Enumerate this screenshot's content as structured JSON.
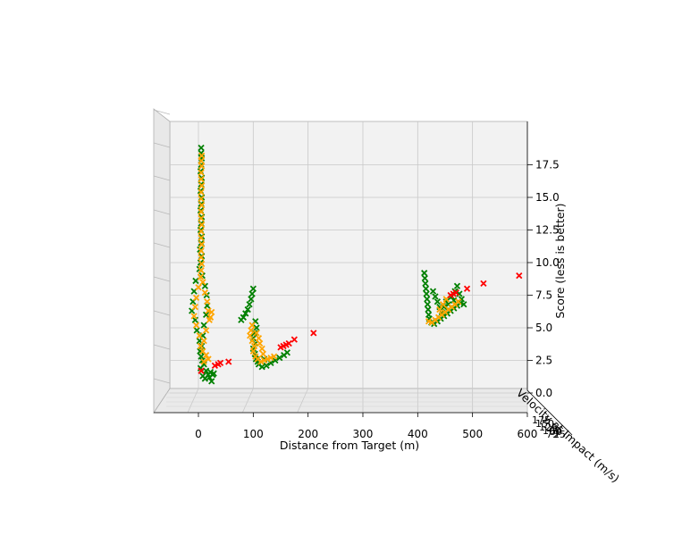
{
  "chart_data": {
    "type": "scatter",
    "projection": "3d",
    "title": "",
    "xlabel": "Distance from Target (m)",
    "ylabel": "Velocity at Impact (m/s)",
    "zlabel": "Score (less is better)",
    "xlim": [
      -80,
      600
    ],
    "zlim": [
      -0.5,
      20
    ],
    "xticks": [
      "0",
      "100",
      "200",
      "300",
      "400",
      "500",
      "600"
    ],
    "zticks": [
      "0.0",
      "2.5",
      "5.0",
      "7.5",
      "10.0",
      "12.5",
      "15.0",
      "17.5"
    ],
    "yticks_partial": [
      "0",
      "25",
      "50",
      "75",
      "100",
      "125",
      "150",
      "175"
    ],
    "grid": true,
    "marker": "x",
    "series": [
      {
        "color": "#008000",
        "points": [
          [
            5,
            18.8
          ],
          [
            5,
            18.4
          ],
          [
            6,
            18.0
          ],
          [
            5,
            17.5
          ],
          [
            4,
            17.0
          ],
          [
            6,
            16.5
          ],
          [
            5,
            16.0
          ],
          [
            4,
            15.5
          ],
          [
            6,
            15.0
          ],
          [
            5,
            14.5
          ],
          [
            4,
            14.0
          ],
          [
            6,
            13.5
          ],
          [
            5,
            13.0
          ],
          [
            4,
            12.5
          ],
          [
            6,
            12.0
          ],
          [
            5,
            11.5
          ],
          [
            3,
            11.0
          ],
          [
            6,
            10.5
          ],
          [
            4,
            10.0
          ],
          [
            2,
            9.5
          ],
          [
            7,
            9.0
          ],
          [
            -5,
            8.6
          ],
          [
            12,
            8.2
          ],
          [
            -8,
            7.8
          ],
          [
            15,
            7.5
          ],
          [
            -10,
            7.0
          ],
          [
            16,
            6.7
          ],
          [
            -12,
            6.3
          ],
          [
            14,
            6.0
          ],
          [
            -6,
            5.6
          ],
          [
            10,
            5.2
          ],
          [
            -3,
            4.8
          ],
          [
            8,
            4.4
          ],
          [
            2,
            4.0
          ],
          [
            6,
            3.6
          ],
          [
            3,
            3.2
          ],
          [
            5,
            2.8
          ],
          [
            7,
            2.5
          ],
          [
            10,
            2.2
          ],
          [
            4,
            1.9
          ],
          [
            14,
            1.7
          ],
          [
            22,
            1.6
          ],
          [
            28,
            1.5
          ],
          [
            18,
            1.4
          ],
          [
            8,
            1.3
          ],
          [
            12,
            1.1
          ],
          [
            20,
            1.2
          ],
          [
            26,
            1.4
          ],
          [
            24,
            0.9
          ],
          [
            100,
            8.0
          ],
          [
            98,
            7.6
          ],
          [
            96,
            7.2
          ],
          [
            93,
            6.8
          ],
          [
            90,
            6.4
          ],
          [
            86,
            6.1
          ],
          [
            82,
            5.8
          ],
          [
            78,
            5.6
          ],
          [
            104,
            5.5
          ],
          [
            106,
            5.0
          ],
          [
            102,
            4.6
          ],
          [
            100,
            4.2
          ],
          [
            104,
            3.8
          ],
          [
            100,
            3.4
          ],
          [
            103,
            3.0
          ],
          [
            105,
            2.6
          ],
          [
            110,
            2.2
          ],
          [
            116,
            2.0
          ],
          [
            124,
            2.1
          ],
          [
            132,
            2.3
          ],
          [
            140,
            2.5
          ],
          [
            148,
            2.7
          ],
          [
            156,
            2.9
          ],
          [
            162,
            3.1
          ],
          [
            108,
            2.4
          ],
          [
            120,
            2.6
          ],
          [
            412,
            9.2
          ],
          [
            413,
            8.8
          ],
          [
            414,
            8.4
          ],
          [
            415,
            8.0
          ],
          [
            416,
            7.6
          ],
          [
            417,
            7.2
          ],
          [
            418,
            6.8
          ],
          [
            419,
            6.4
          ],
          [
            420,
            6.0
          ],
          [
            421,
            5.7
          ],
          [
            425,
            5.4
          ],
          [
            430,
            5.3
          ],
          [
            436,
            5.5
          ],
          [
            442,
            5.7
          ],
          [
            448,
            5.9
          ],
          [
            454,
            6.1
          ],
          [
            460,
            6.3
          ],
          [
            466,
            6.5
          ],
          [
            472,
            6.7
          ],
          [
            478,
            6.9
          ],
          [
            428,
            7.8
          ],
          [
            432,
            7.4
          ],
          [
            436,
            7.0
          ],
          [
            440,
            6.6
          ],
          [
            444,
            6.2
          ],
          [
            448,
            6.6
          ],
          [
            452,
            7.0
          ],
          [
            456,
            6.8
          ],
          [
            462,
            7.4
          ],
          [
            468,
            7.8
          ],
          [
            472,
            8.2
          ],
          [
            476,
            7.6
          ],
          [
            480,
            7.2
          ],
          [
            484,
            6.8
          ],
          [
            466,
            7.1
          ]
        ]
      },
      {
        "color": "#FFA500",
        "points": [
          [
            6,
            18.2
          ],
          [
            5,
            17.8
          ],
          [
            6,
            17.4
          ],
          [
            5,
            16.9
          ],
          [
            5,
            16.4
          ],
          [
            6,
            15.9
          ],
          [
            5,
            15.4
          ],
          [
            5,
            14.9
          ],
          [
            6,
            14.4
          ],
          [
            5,
            13.9
          ],
          [
            5,
            13.4
          ],
          [
            6,
            12.9
          ],
          [
            5,
            12.4
          ],
          [
            5,
            11.9
          ],
          [
            6,
            11.4
          ],
          [
            5,
            10.9
          ],
          [
            5,
            10.4
          ],
          [
            6,
            9.9
          ],
          [
            5,
            9.4
          ],
          [
            4,
            8.9
          ],
          [
            8,
            8.5
          ],
          [
            0,
            8.1
          ],
          [
            12,
            7.7
          ],
          [
            -4,
            7.3
          ],
          [
            16,
            7.0
          ],
          [
            -6,
            6.6
          ],
          [
            18,
            6.3
          ],
          [
            -8,
            5.9
          ],
          [
            20,
            5.6
          ],
          [
            -4,
            5.2
          ],
          [
            14,
            4.8
          ],
          [
            2,
            4.4
          ],
          [
            10,
            4.0
          ],
          [
            4,
            3.6
          ],
          [
            8,
            3.2
          ],
          [
            14,
            2.9
          ],
          [
            18,
            2.6
          ],
          [
            10,
            2.4
          ],
          [
            24,
            6.2
          ],
          [
            22,
            5.8
          ],
          [
            98,
            5.2
          ],
          [
            96,
            4.8
          ],
          [
            94,
            4.4
          ],
          [
            98,
            4.0
          ],
          [
            102,
            3.6
          ],
          [
            100,
            3.2
          ],
          [
            104,
            2.8
          ],
          [
            108,
            2.6
          ],
          [
            114,
            2.4
          ],
          [
            120,
            2.5
          ],
          [
            126,
            2.6
          ],
          [
            132,
            2.7
          ],
          [
            138,
            2.8
          ],
          [
            106,
            4.6
          ],
          [
            110,
            4.2
          ],
          [
            112,
            3.8
          ],
          [
            116,
            3.4
          ],
          [
            118,
            3.0
          ],
          [
            420,
            5.5
          ],
          [
            426,
            5.4
          ],
          [
            432,
            5.6
          ],
          [
            438,
            5.8
          ],
          [
            444,
            6.0
          ],
          [
            450,
            6.2
          ],
          [
            456,
            6.4
          ],
          [
            462,
            6.6
          ],
          [
            468,
            6.8
          ],
          [
            474,
            7.0
          ],
          [
            440,
            6.4
          ],
          [
            446,
            6.8
          ],
          [
            452,
            7.2
          ]
        ]
      },
      {
        "color": "#FF0000",
        "points": [
          [
            5,
            1.7
          ],
          [
            30,
            2.1
          ],
          [
            36,
            2.2
          ],
          [
            40,
            2.3
          ],
          [
            55,
            2.4
          ],
          [
            150,
            3.5
          ],
          [
            155,
            3.6
          ],
          [
            160,
            3.7
          ],
          [
            165,
            3.8
          ],
          [
            175,
            4.1
          ],
          [
            210,
            4.6
          ],
          [
            460,
            7.5
          ],
          [
            465,
            7.6
          ],
          [
            470,
            7.7
          ],
          [
            490,
            8.0
          ],
          [
            520,
            8.4
          ],
          [
            585,
            9.0
          ]
        ]
      }
    ]
  }
}
